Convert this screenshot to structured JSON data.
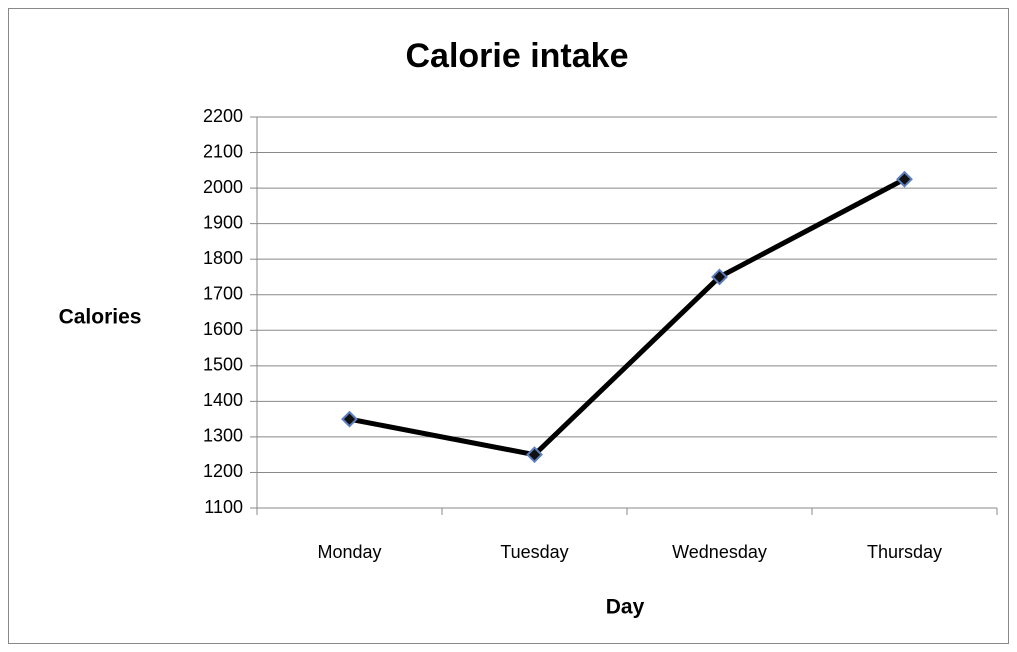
{
  "chart_data": {
    "type": "line",
    "title": "Calorie intake",
    "x_label": "Day",
    "y_label": "Calories",
    "categories": [
      "Monday",
      "Tuesday",
      "Wednesday",
      "Thursday"
    ],
    "series": [
      {
        "name": "Calories",
        "color": "#000000",
        "values": [
          1350,
          1250,
          1750,
          2025
        ]
      }
    ],
    "ylim": [
      1100,
      2200
    ],
    "yticks": [
      1100,
      1200,
      1300,
      1400,
      1500,
      1600,
      1700,
      1800,
      1900,
      2000,
      2100,
      2200
    ],
    "grid": true,
    "legend": false
  }
}
